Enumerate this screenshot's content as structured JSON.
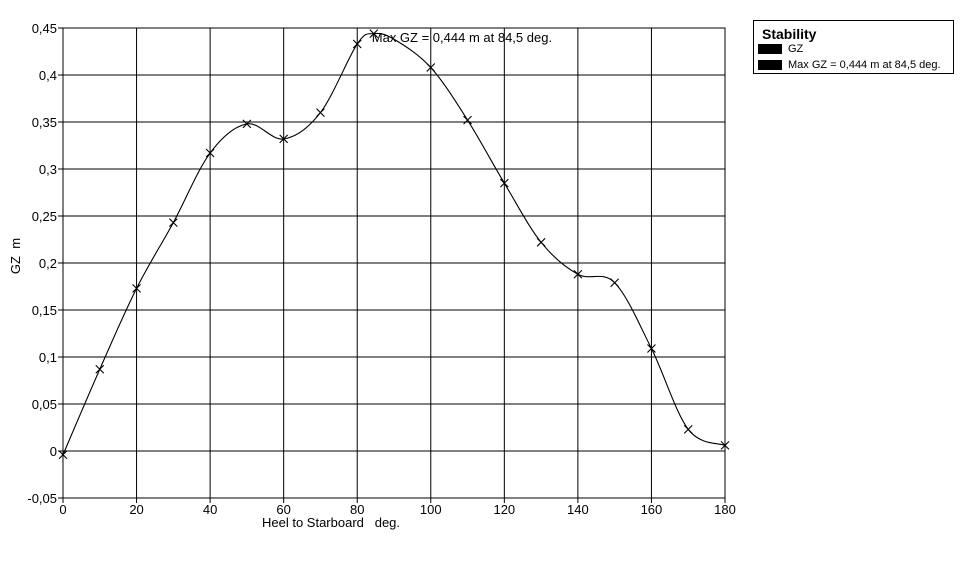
{
  "chart_data": {
    "type": "line",
    "xlabel": "Heel to Starboard   deg.",
    "ylabel": "GZ  m",
    "xlim": [
      0,
      180
    ],
    "ylim": [
      -0.05,
      0.45
    ],
    "x_ticks": [
      "0",
      "20",
      "40",
      "60",
      "80",
      "100",
      "120",
      "140",
      "160",
      "180"
    ],
    "y_ticks": [
      "0,45",
      "0,4",
      "0,35",
      "0,3",
      "0,25",
      "0,2",
      "0,15",
      "0,1",
      "0,05",
      "0",
      "-0,05"
    ],
    "grid": true,
    "annotation": "Max GZ = 0,444 m at 84,5 deg.",
    "series": [
      {
        "name": "GZ",
        "x": [
          0,
          10,
          20,
          30,
          40,
          50,
          60,
          70,
          80,
          84.5,
          90,
          100,
          110,
          120,
          130,
          140,
          150,
          160,
          170,
          180
        ],
        "y": [
          -0.004,
          0.087,
          0.173,
          0.243,
          0.317,
          0.348,
          0.332,
          0.36,
          0.433,
          0.444,
          0.438,
          0.408,
          0.352,
          0.285,
          0.222,
          0.188,
          0.179,
          0.109,
          0.023,
          0.006
        ]
      }
    ],
    "markers": {
      "x": [
        0,
        10,
        20,
        30,
        40,
        50,
        60,
        70,
        80,
        84.5,
        100,
        110,
        120,
        130,
        140,
        150,
        160,
        170,
        180
      ],
      "y": [
        -0.004,
        0.087,
        0.173,
        0.243,
        0.317,
        0.348,
        0.332,
        0.36,
        0.433,
        0.444,
        0.408,
        0.352,
        0.285,
        0.222,
        0.188,
        0.179,
        0.109,
        0.023,
        0.006
      ]
    },
    "legend": {
      "title": "Stability",
      "entries": [
        "GZ",
        "Max GZ = 0,444 m at 84,5 deg."
      ],
      "placement": "top-right"
    }
  }
}
